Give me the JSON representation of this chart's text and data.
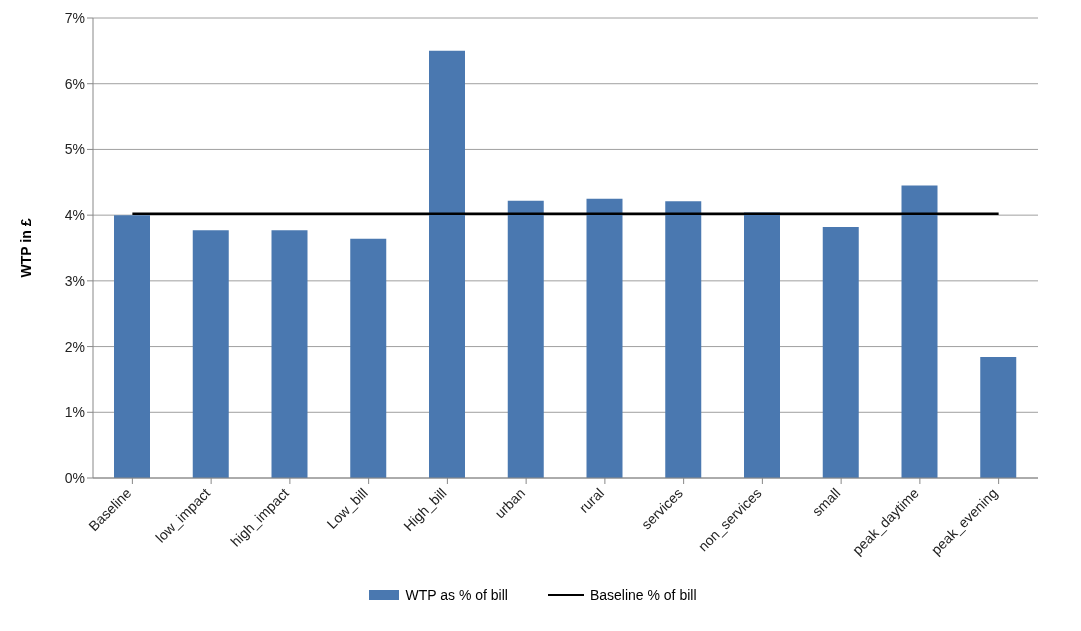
{
  "chart_data": {
    "type": "bar",
    "ylabel": "WTP in £",
    "categories": [
      "Baseline",
      "low_impact",
      "high_impact",
      "Low_bill",
      "High_bill",
      "urban",
      "rural",
      "services",
      "non_services",
      "small",
      "peak_daytime",
      "peak_evening"
    ],
    "series": [
      {
        "name": "WTP as % of bill",
        "color": "#4a78b0",
        "values": [
          4.0,
          3.77,
          3.77,
          3.64,
          6.5,
          4.22,
          4.25,
          4.21,
          4.04,
          3.82,
          4.45,
          1.84
        ]
      },
      {
        "name": "Baseline % of bill",
        "type": "line",
        "color": "#000000",
        "values": [
          4.02,
          4.02,
          4.02,
          4.02,
          4.02,
          4.02,
          4.02,
          4.02,
          4.02,
          4.02,
          4.02,
          4.02
        ]
      }
    ],
    "ylim": [
      0,
      7
    ],
    "yticks": [
      {
        "value": 0,
        "label": "0%"
      },
      {
        "value": 1,
        "label": "1%"
      },
      {
        "value": 2,
        "label": "2%"
      },
      {
        "value": 3,
        "label": "3%"
      },
      {
        "value": 4,
        "label": "4%"
      },
      {
        "value": 5,
        "label": "5%"
      },
      {
        "value": 6,
        "label": "6%"
      },
      {
        "value": 7,
        "label": "7%"
      }
    ],
    "grid": "y",
    "legend": "bottom",
    "marker": "none"
  }
}
